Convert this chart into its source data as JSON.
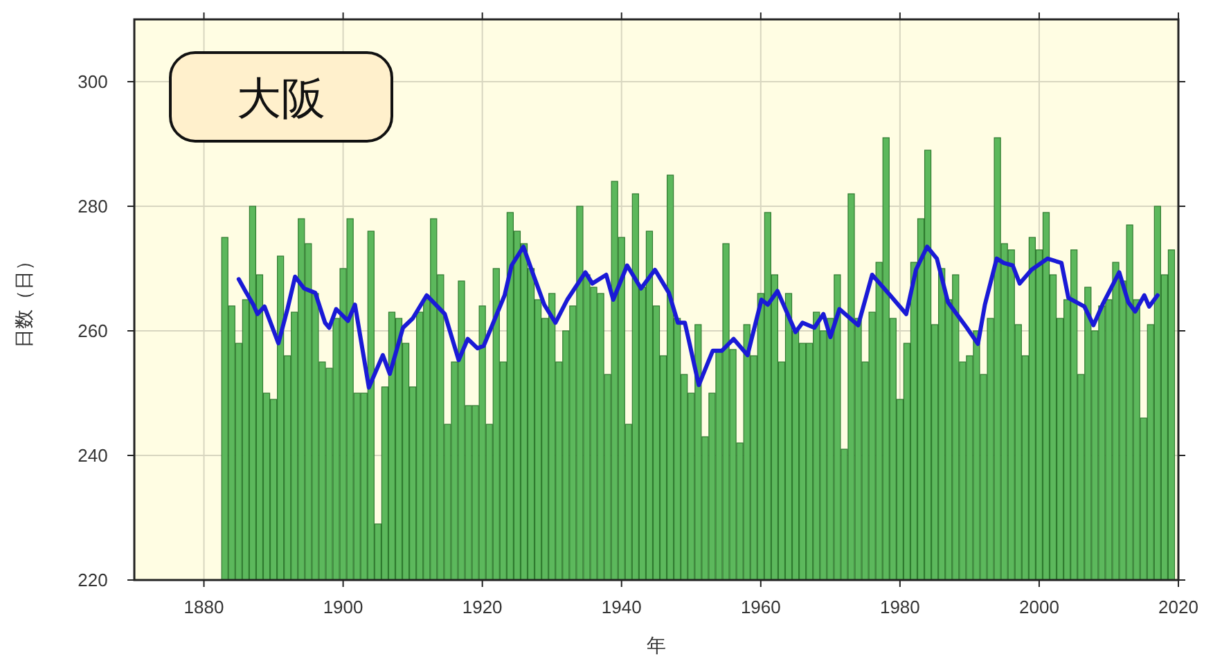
{
  "chart_data": {
    "type": "bar",
    "title": "大阪",
    "xlabel": "年",
    "ylabel": "日数（日）",
    "xlim": [
      1870,
      2020
    ],
    "xticks": [
      1880,
      1900,
      1920,
      1940,
      1960,
      1980,
      2000,
      2020
    ],
    "ylim": [
      220,
      310
    ],
    "yticks": [
      220,
      240,
      260,
      280,
      300
    ],
    "grid": true,
    "series": [
      {
        "color": "#5cb85c",
        "x": [
          1883,
          1884,
          1885,
          1886,
          1887,
          1888,
          1889,
          1890,
          1891,
          1892,
          1893,
          1894,
          1895,
          1896,
          1897,
          1898,
          1899,
          1900,
          1901,
          1902,
          1903,
          1904,
          1905,
          1906,
          1907,
          1908,
          1909,
          1910,
          1911,
          1912,
          1913,
          1914,
          1915,
          1916,
          1917,
          1918,
          1919,
          1920,
          1921,
          1922,
          1923,
          1924,
          1925,
          1926,
          1927,
          1928,
          1929,
          1930,
          1931,
          1932,
          1933,
          1934,
          1935,
          1936,
          1937,
          1938,
          1939,
          1940,
          1941,
          1942,
          1943,
          1944,
          1945,
          1946,
          1947,
          1948,
          1949,
          1950,
          1951,
          1952,
          1953,
          1954,
          1955,
          1956,
          1957,
          1958,
          1959,
          1960,
          1961,
          1962,
          1963,
          1964,
          1965,
          1966,
          1967,
          1968,
          1969,
          1970,
          1971,
          1972,
          1973,
          1974,
          1975,
          1976,
          1977,
          1978,
          1979,
          1980,
          1981,
          1982,
          1983,
          1984,
          1985,
          1986,
          1987,
          1988,
          1989,
          1990,
          1991,
          1992,
          1993,
          1994,
          1995,
          1996,
          1997,
          1998,
          1999,
          2000,
          2001,
          2002,
          2003,
          2004,
          2005,
          2006,
          2007,
          2008,
          2009,
          2010,
          2011,
          2012,
          2013,
          2014,
          2015,
          2016,
          2017,
          2018,
          2019
        ],
        "values": [
          275,
          264,
          258,
          265,
          280,
          269,
          250,
          249,
          272,
          256,
          263,
          278,
          274,
          266,
          255,
          254,
          262,
          270,
          278,
          250,
          250,
          276,
          229,
          251,
          263,
          262,
          258,
          251,
          263,
          265,
          278,
          269,
          245,
          255,
          268,
          248,
          248,
          264,
          245,
          270,
          255,
          279,
          276,
          274,
          270,
          265,
          262,
          266,
          255,
          260,
          264,
          280,
          269,
          267,
          266,
          253,
          284,
          275,
          245,
          282,
          267,
          276,
          264,
          256,
          285,
          262,
          253,
          250,
          261,
          243,
          250,
          257,
          274,
          257,
          242,
          261,
          256,
          266,
          279,
          269,
          255,
          266,
          260,
          258,
          258,
          263,
          260,
          262,
          269,
          241,
          282,
          262,
          255,
          263,
          271,
          291,
          262,
          249,
          258,
          271,
          278,
          289,
          261,
          270,
          265,
          269,
          255,
          256,
          260,
          253,
          262,
          291,
          274,
          273,
          261,
          256,
          275,
          273,
          279,
          269,
          262,
          265,
          273,
          253,
          267,
          260,
          264,
          265,
          271,
          268,
          277,
          265,
          246,
          261,
          280,
          269,
          273
        ]
      },
      {
        "type": "line",
        "color": "#1a1ad6",
        "x": [
          1885,
          1886.1,
          1887.1,
          1887.7,
          1888.7,
          1890.7,
          1892,
          1893.1,
          1894.4,
          1896,
          1897.4,
          1898,
          1899,
          1900.7,
          1901.7,
          1903.7,
          1905.7,
          1906.7,
          1908.6,
          1910,
          1912,
          1914.6,
          1916.6,
          1917.9,
          1919.3,
          1920.2,
          1923.2,
          1924.2,
          1925.9,
          1927.2,
          1928.9,
          1930.5,
          1932.2,
          1934.8,
          1935.8,
          1937.8,
          1938.8,
          1940.8,
          1942.8,
          1944.8,
          1946.8,
          1948.1,
          1949.1,
          1951.1,
          1953.1,
          1954.4,
          1956.1,
          1958.1,
          1960.1,
          1961,
          1962.4,
          1965,
          1966,
          1967.7,
          1969,
          1970,
          1971.3,
          1974,
          1976,
          1978.6,
          1980.9,
          1982.3,
          1983.9,
          1985.3,
          1986.9,
          1989.6,
          1991.2,
          1992.2,
          1993.9,
          1994.9,
          1996.2,
          1997.2,
          1998.9,
          2001.2,
          2003.2,
          2004.2,
          2006.5,
          2007.8,
          2009.1,
          2011.5,
          2012.8,
          2013.8,
          2015.1,
          2015.8,
          2017
        ],
        "values": [
          268.3,
          266.1,
          264.2,
          262.7,
          263.9,
          258,
          263.5,
          268.7,
          266.8,
          266.1,
          261.3,
          260.5,
          263.5,
          261.6,
          264.2,
          250.9,
          256.1,
          253.1,
          260.5,
          262,
          265.7,
          262.7,
          255.3,
          258.7,
          257.2,
          257.6,
          265.7,
          270.5,
          273.5,
          269.4,
          264.2,
          261.3,
          265,
          269.4,
          267.6,
          269,
          265,
          270.5,
          266.8,
          269.8,
          266.1,
          261.3,
          261.3,
          251.3,
          256.8,
          256.8,
          258.7,
          256.1,
          265,
          264.2,
          266.4,
          259.8,
          261.3,
          260.5,
          262.7,
          259,
          263.5,
          260.9,
          269,
          265.7,
          262.7,
          269.8,
          273.5,
          271.6,
          264.6,
          260.5,
          257.9,
          264.2,
          271.6,
          270.9,
          270.5,
          267.6,
          269.8,
          271.6,
          270.9,
          265.3,
          263.9,
          260.9,
          264.2,
          269.4,
          264.6,
          263.1,
          265.7,
          263.9,
          265.7
        ]
      }
    ]
  }
}
